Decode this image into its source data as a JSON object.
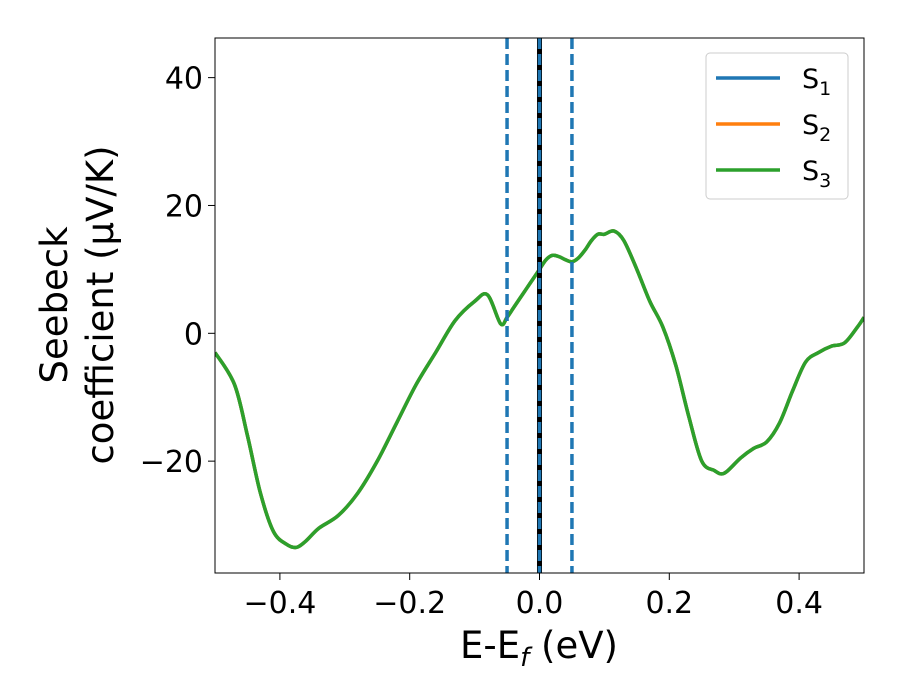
{
  "chart_data": {
    "type": "line",
    "xlabel_main": "E-E",
    "xlabel_sub": "f",
    "xlabel_unit": " (eV)",
    "ylabel_line1": "Seebeck",
    "ylabel_line2": "coefficient  (μV/K)",
    "xlim": [
      -0.5,
      0.5
    ],
    "ylim": [
      -37.5,
      46.2
    ],
    "xticks": [
      -0.4,
      -0.2,
      0.0,
      0.2,
      0.4
    ],
    "xtick_labels": [
      "−0.4",
      "−0.2",
      "0.0",
      "0.2",
      "0.4"
    ],
    "yticks": [
      -20,
      0,
      20,
      40
    ],
    "ytick_labels": [
      "−20",
      "0",
      "20",
      "40"
    ],
    "legend_position": "top-right",
    "series": [
      {
        "name": "S",
        "sub": "1",
        "color": "#1f77b4"
      },
      {
        "name": "S",
        "sub": "2",
        "color": "#ff7f0e"
      },
      {
        "name": "S",
        "sub": "3",
        "color": "#2ca02c"
      }
    ],
    "curve": {
      "x": [
        -0.5,
        -0.47,
        -0.45,
        -0.43,
        -0.41,
        -0.39,
        -0.375,
        -0.36,
        -0.34,
        -0.31,
        -0.28,
        -0.25,
        -0.22,
        -0.19,
        -0.16,
        -0.13,
        -0.1,
        -0.08,
        -0.06,
        -0.05,
        -0.04,
        -0.03,
        -0.02,
        -0.01,
        0.0,
        0.01,
        0.02,
        0.03,
        0.04,
        0.05,
        0.06,
        0.07,
        0.08,
        0.09,
        0.1,
        0.115,
        0.13,
        0.15,
        0.17,
        0.19,
        0.21,
        0.23,
        0.25,
        0.27,
        0.28,
        0.29,
        0.31,
        0.33,
        0.35,
        0.37,
        0.39,
        0.41,
        0.43,
        0.45,
        0.47,
        0.49,
        0.5
      ],
      "y": [
        -3,
        -8,
        -16,
        -25,
        -31,
        -33,
        -33.5,
        -32.5,
        -30.5,
        -28.5,
        -25,
        -20,
        -14,
        -8,
        -3,
        2,
        5,
        6,
        1.5,
        2.5,
        4,
        5.5,
        7,
        8.5,
        10,
        11.5,
        12.2,
        12,
        11.5,
        11.2,
        11.8,
        13,
        14.5,
        15.5,
        15.5,
        16,
        14.5,
        10,
        5,
        1,
        -5,
        -13,
        -20,
        -21.5,
        -22,
        -21.5,
        -19.5,
        -18,
        -17,
        -14,
        -9,
        -4.5,
        -3,
        -2,
        -1.5,
        1,
        2.5
      ]
    },
    "vlines_dashed": [
      -0.05,
      0.0,
      0.05
    ],
    "vline_solid": 0.0
  }
}
